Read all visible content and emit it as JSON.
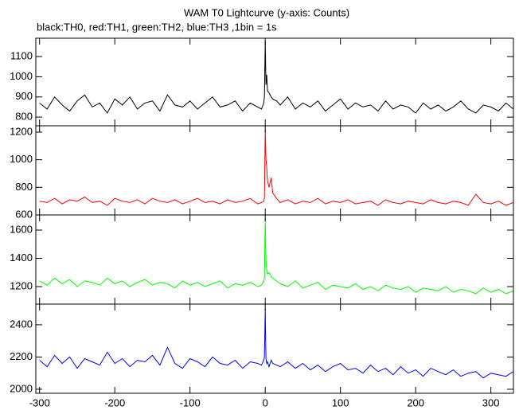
{
  "chart_data": {
    "type": "line",
    "title": "WAM T0 Lightcurve (y-axis: Counts)",
    "subtitle": "black:TH0, red:TH1, green:TH2, blue:TH3 ,1bin = 1s",
    "x": [
      -300,
      -290,
      -280,
      -270,
      -260,
      -250,
      -240,
      -230,
      -220,
      -210,
      -200,
      -190,
      -180,
      -170,
      -160,
      -150,
      -140,
      -130,
      -120,
      -110,
      -100,
      -90,
      -80,
      -70,
      -60,
      -50,
      -40,
      -30,
      -20,
      -10,
      -5,
      -2,
      -1,
      0,
      1,
      2,
      3,
      5,
      8,
      10,
      15,
      20,
      30,
      40,
      50,
      60,
      70,
      80,
      90,
      100,
      110,
      120,
      130,
      140,
      150,
      160,
      170,
      180,
      190,
      200,
      210,
      220,
      230,
      240,
      250,
      260,
      270,
      280,
      290,
      300,
      310,
      320,
      330
    ],
    "xlim": [
      -305,
      330
    ],
    "xticks": [
      -300,
      -200,
      -100,
      0,
      100,
      200,
      300
    ],
    "panels": [
      {
        "color": "#000000",
        "ylim": [
          757,
          1191
        ],
        "yticks": [
          800,
          900,
          1000,
          1100
        ],
        "values": [
          870,
          840,
          900,
          860,
          830,
          880,
          910,
          850,
          870,
          820,
          890,
          860,
          900,
          840,
          870,
          880,
          830,
          910,
          860,
          850,
          880,
          840,
          870,
          900,
          850,
          860,
          880,
          830,
          870,
          850,
          840,
          870,
          900,
          1180,
          960,
          1010,
          930,
          920,
          900,
          890,
          880,
          860,
          900,
          840,
          870,
          850,
          880,
          830,
          860,
          890,
          840,
          870,
          850,
          860,
          830,
          880,
          840,
          860,
          850,
          820,
          870,
          840,
          860,
          830,
          850,
          880,
          840,
          820,
          860,
          850,
          830,
          870,
          840
        ]
      },
      {
        "color": "#ff0000",
        "ylim": [
          600,
          1246
        ],
        "yticks": [
          600,
          800,
          1000,
          1200
        ],
        "values": [
          700,
          690,
          720,
          680,
          710,
          700,
          730,
          690,
          700,
          670,
          720,
          700,
          690,
          710,
          680,
          720,
          700,
          690,
          710,
          680,
          700,
          720,
          690,
          700,
          680,
          710,
          690,
          700,
          720,
          680,
          690,
          700,
          720,
          1220,
          1010,
          940,
          850,
          800,
          870,
          760,
          720,
          690,
          710,
          680,
          700,
          690,
          720,
          680,
          700,
          690,
          710,
          680,
          690,
          700,
          670,
          710,
          690,
          680,
          700,
          690,
          680,
          710,
          690,
          680,
          700,
          690,
          670,
          750,
          690,
          680,
          700,
          670,
          690
        ]
      },
      {
        "color": "#00ff00",
        "ylim": [
          1076,
          1707
        ],
        "yticks": [
          1200,
          1400,
          1600
        ],
        "values": [
          1240,
          1210,
          1260,
          1220,
          1250,
          1200,
          1240,
          1230,
          1210,
          1260,
          1220,
          1240,
          1200,
          1230,
          1250,
          1210,
          1230,
          1220,
          1190,
          1240,
          1210,
          1230,
          1200,
          1220,
          1240,
          1190,
          1220,
          1210,
          1230,
          1200,
          1210,
          1240,
          1260,
          1690,
          1380,
          1320,
          1290,
          1300,
          1270,
          1260,
          1240,
          1220,
          1200,
          1240,
          1190,
          1210,
          1230,
          1180,
          1210,
          1200,
          1190,
          1220,
          1180,
          1200,
          1170,
          1210,
          1190,
          1180,
          1200,
          1160,
          1190,
          1180,
          1170,
          1200,
          1160,
          1180,
          1170,
          1150,
          1190,
          1160,
          1180,
          1150,
          1170
        ]
      },
      {
        "color": "#0000ff",
        "ylim": [
          1975,
          2528
        ],
        "yticks": [
          2000,
          2200,
          2400
        ],
        "values": [
          2180,
          2140,
          2210,
          2160,
          2200,
          2130,
          2190,
          2170,
          2150,
          2230,
          2160,
          2190,
          2140,
          2180,
          2170,
          2210,
          2150,
          2260,
          2160,
          2130,
          2190,
          2170,
          2140,
          2200,
          2160,
          2150,
          2180,
          2130,
          2170,
          2160,
          2150,
          2180,
          2200,
          2500,
          2190,
          2160,
          2170,
          2140,
          2180,
          2160,
          2150,
          2140,
          2170,
          2130,
          2160,
          2120,
          2150,
          2110,
          2140,
          2160,
          2120,
          2130,
          2100,
          2150,
          2110,
          2130,
          2090,
          2140,
          2100,
          2120,
          2080,
          2130,
          2110,
          2090,
          2120,
          2080,
          2100,
          2110,
          2070,
          2100,
          2090,
          2080,
          2110
        ]
      }
    ]
  }
}
